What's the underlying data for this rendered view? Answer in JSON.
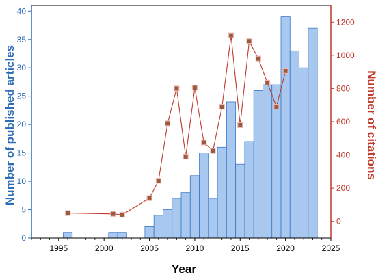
{
  "chart_data": {
    "type": "bar",
    "xlabel": "Year",
    "x_ticks": [
      1995,
      2000,
      2005,
      2010,
      2015,
      2020,
      2025
    ],
    "xlim": [
      1992,
      2025
    ],
    "y_left": {
      "label": "Number of published articles",
      "ticks": [
        0,
        5,
        10,
        15,
        20,
        25,
        30,
        35,
        40
      ],
      "ylim": [
        0,
        41
      ],
      "color": "#2e6db5"
    },
    "y_right": {
      "label": "Number of citations",
      "ticks": [
        0,
        200,
        400,
        600,
        800,
        1000,
        1200
      ],
      "ylim": [
        -100,
        1300
      ],
      "color": "#c0392b"
    },
    "bar_color": "#a8c8f0",
    "bar_edge_color": "#3a78c5",
    "line_color": "#c0392b",
    "marker_color": "#9c5a3c",
    "series": [
      {
        "type": "bar",
        "axis": "left",
        "x": [
          1996,
          2001,
          2002,
          2005,
          2006,
          2007,
          2008,
          2009,
          2010,
          2011,
          2012,
          2013,
          2014,
          2015,
          2016,
          2017,
          2018,
          2019,
          2020,
          2021,
          2022,
          2023
        ],
        "values": [
          1,
          1,
          1,
          2,
          4,
          5,
          7,
          8,
          11,
          15,
          7,
          16,
          24,
          13,
          17,
          26,
          27,
          27,
          39,
          33,
          30,
          37
        ]
      },
      {
        "type": "line",
        "axis": "right",
        "x": [
          1996,
          2001,
          2002,
          2005,
          2006,
          2007,
          2008,
          2009,
          2010,
          2011,
          2012,
          2013,
          2014,
          2015,
          2016,
          2017,
          2018,
          2019,
          2020
        ],
        "values": [
          50,
          45,
          40,
          140,
          245,
          590,
          800,
          390,
          805,
          475,
          425,
          690,
          1120,
          580,
          1085,
          980,
          835,
          690,
          905
        ]
      }
    ]
  }
}
